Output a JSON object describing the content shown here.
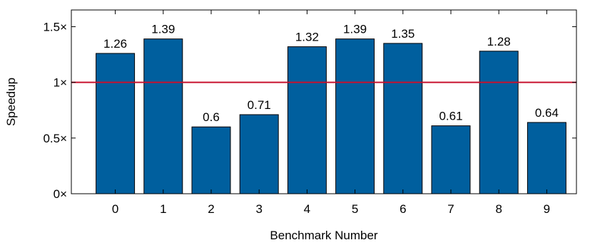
{
  "chart_data": {
    "type": "bar",
    "categories": [
      "0",
      "1",
      "2",
      "3",
      "4",
      "5",
      "6",
      "7",
      "8",
      "9"
    ],
    "values": [
      1.26,
      1.39,
      0.6,
      0.71,
      1.32,
      1.39,
      1.35,
      0.61,
      1.28,
      0.64
    ],
    "data_labels": [
      "1.26",
      "1.39",
      "0.6",
      "0.71",
      "1.32",
      "1.39",
      "1.35",
      "0.61",
      "1.28",
      "0.64"
    ],
    "xlabel": "Benchmark Number",
    "ylabel": "Speedup",
    "ylim": [
      0,
      1.65
    ],
    "yticks": [
      0,
      0.5,
      1,
      1.5
    ],
    "ytick_labels": [
      "0×",
      "0.5×",
      "1×",
      "1.5×"
    ],
    "reference_line": {
      "value": 1,
      "color": "#c8102e"
    },
    "bar_color": "#005f9e",
    "grid": false,
    "legend": "none"
  }
}
